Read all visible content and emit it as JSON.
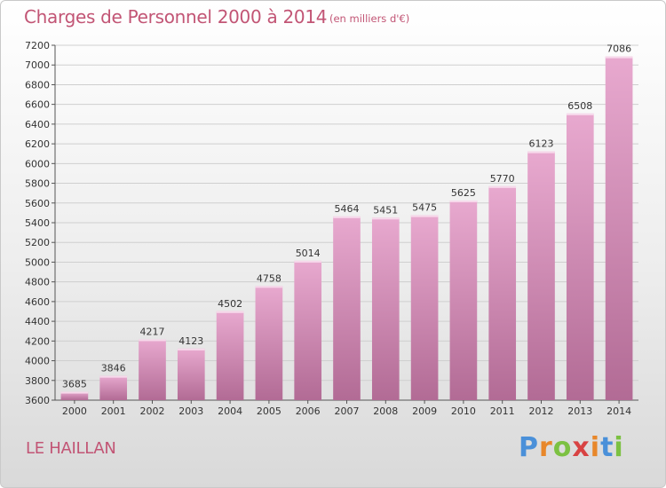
{
  "header": {
    "title": "Charges de Personnel 2000 à 2014",
    "subtitle": "(en milliers d'€)"
  },
  "footer": {
    "city": "LE HAILLAN",
    "logo": {
      "letters": [
        "P",
        "r",
        "o",
        "x",
        "i",
        "t",
        "i"
      ],
      "colors": [
        "#4a90d9",
        "#e8872a",
        "#7cc142",
        "#d84343",
        "#e8872a",
        "#4a90d9",
        "#7cc142"
      ]
    }
  },
  "colors": {
    "bar_top": "#e8a9cf",
    "bar_bottom": "#b26b95",
    "text_accent": "#c25575"
  },
  "chart_data": {
    "type": "bar",
    "title": "Charges de Personnel 2000 à 2014",
    "subtitle": "(en milliers d'€)",
    "xlabel": "",
    "ylabel": "",
    "categories": [
      "2000",
      "2001",
      "2002",
      "2003",
      "2004",
      "2005",
      "2006",
      "2007",
      "2008",
      "2009",
      "2010",
      "2011",
      "2012",
      "2013",
      "2014"
    ],
    "values": [
      3685,
      3846,
      4217,
      4123,
      4502,
      4758,
      5014,
      5464,
      5451,
      5475,
      5625,
      5770,
      6123,
      6508,
      7086
    ],
    "ylim": [
      3600,
      7200
    ],
    "yticks": [
      "3600",
      "3800",
      "4000",
      "4200",
      "4400",
      "4600",
      "4800",
      "5000",
      "5200",
      "5400",
      "5600",
      "5800",
      "6000",
      "6200",
      "6400",
      "6600",
      "6800",
      "7000",
      "7200"
    ],
    "grid": true,
    "legend": "none"
  }
}
